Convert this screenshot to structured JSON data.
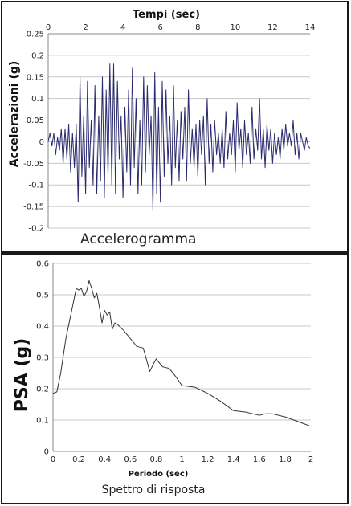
{
  "chart_data": [
    {
      "type": "line",
      "title": "",
      "caption": "Accelerogramma",
      "xlabel": "Tempi (sec)",
      "ylabel": "Accelerazioni (g)",
      "xlim": [
        0,
        14
      ],
      "ylim": [
        -0.2,
        0.25
      ],
      "x_axis_position": "top",
      "grid": "horizontal",
      "line_color": "#2b2a6e",
      "xticks": [
        "0",
        "2",
        "4",
        "6",
        "8",
        "10",
        "12",
        "14"
      ],
      "yticks": [
        "0.25",
        "0.2",
        "0.15",
        "0.1",
        "0.05",
        "0",
        "-0.05",
        "-0.1",
        "-0.15",
        "-0.2"
      ],
      "series": [
        {
          "x": [
            0,
            0.1,
            0.2,
            0.3,
            0.4,
            0.5,
            0.6,
            0.7,
            0.8,
            0.9,
            1.0,
            1.1,
            1.2,
            1.3,
            1.4,
            1.5,
            1.6,
            1.7,
            1.8,
            1.9,
            2.0,
            2.1,
            2.2,
            2.3,
            2.4,
            2.5,
            2.6,
            2.7,
            2.8,
            2.9,
            3.0,
            3.1,
            3.2,
            3.3,
            3.4,
            3.5,
            3.6,
            3.7,
            3.8,
            3.9,
            4.0,
            4.1,
            4.2,
            4.3,
            4.4,
            4.5,
            4.6,
            4.7,
            4.8,
            4.9,
            5.0,
            5.1,
            5.2,
            5.3,
            5.4,
            5.5,
            5.6,
            5.7,
            5.8,
            5.9,
            6.0,
            6.1,
            6.2,
            6.3,
            6.4,
            6.5,
            6.6,
            6.7,
            6.8,
            6.9,
            7.0,
            7.1,
            7.2,
            7.3,
            7.4,
            7.5,
            7.6,
            7.7,
            7.8,
            7.9,
            8.0,
            8.1,
            8.2,
            8.3,
            8.4,
            8.5,
            8.6,
            8.7,
            8.8,
            8.9,
            9.0,
            9.1,
            9.2,
            9.3,
            9.4,
            9.5,
            9.6,
            9.7,
            9.8,
            9.9,
            10.0,
            10.1,
            10.2,
            10.3,
            10.4,
            10.5,
            10.6,
            10.7,
            10.8,
            10.9,
            11.0,
            11.1,
            11.2,
            11.3,
            11.4,
            11.5,
            11.6,
            11.7,
            11.8,
            11.9,
            12.0,
            12.1,
            12.2,
            12.3,
            12.4,
            12.5,
            12.6,
            12.7,
            12.8,
            12.9,
            13.0,
            13.1,
            13.2,
            13.3,
            13.4,
            13.5,
            13.6,
            13.7,
            13.8,
            13.9,
            14.0
          ],
          "y": [
            0,
            0.02,
            -0.01,
            0.02,
            -0.03,
            0.01,
            -0.02,
            0.03,
            -0.05,
            0.03,
            -0.04,
            0.04,
            -0.07,
            0.02,
            -0.06,
            0.04,
            -0.14,
            0.15,
            -0.08,
            0.06,
            -0.12,
            0.14,
            -0.06,
            0.05,
            -0.1,
            0.13,
            -0.12,
            0.06,
            -0.09,
            0.15,
            -0.13,
            0.12,
            -0.08,
            0.18,
            -0.1,
            0.18,
            -0.12,
            0.14,
            -0.04,
            0.06,
            -0.13,
            0.08,
            -0.07,
            0.12,
            -0.1,
            0.17,
            -0.06,
            0.1,
            -0.12,
            0.05,
            -0.1,
            0.15,
            -0.07,
            0.13,
            -0.03,
            0.06,
            -0.16,
            0.16,
            -0.12,
            0.08,
            -0.14,
            0.14,
            -0.08,
            0.12,
            -0.05,
            0.06,
            -0.1,
            0.13,
            -0.06,
            0.05,
            -0.09,
            0.07,
            -0.04,
            0.08,
            -0.09,
            0.12,
            -0.05,
            0.03,
            -0.06,
            0.04,
            -0.08,
            0.05,
            -0.03,
            0.06,
            -0.1,
            0.1,
            -0.05,
            0.04,
            -0.07,
            0.05,
            -0.03,
            0.02,
            -0.05,
            0.03,
            -0.06,
            0.07,
            -0.04,
            0.02,
            -0.03,
            0.05,
            -0.07,
            0.09,
            -0.02,
            0.03,
            -0.06,
            0.05,
            -0.03,
            0.02,
            -0.05,
            0.08,
            -0.04,
            0.03,
            -0.02,
            0.1,
            -0.04,
            0.03,
            -0.06,
            0.04,
            -0.02,
            0.03,
            -0.05,
            0.02,
            -0.03,
            0.01,
            -0.04,
            0.03,
            -0.02,
            0.04,
            -0.01,
            0.02,
            -0.01,
            0.05,
            -0.03,
            0.02,
            -0.04,
            0.02,
            0.0,
            -0.02,
            0.01,
            -0.01,
            -0.015
          ]
        }
      ]
    },
    {
      "type": "line",
      "title": "",
      "caption": "Spettro di risposta",
      "xlabel": "Periodo (sec)",
      "ylabel": "PSA (g)",
      "xlim": [
        0,
        2
      ],
      "ylim": [
        0,
        0.6
      ],
      "x_axis_position": "bottom",
      "grid": "horizontal",
      "line_color": "#333333",
      "xticks": [
        "0",
        "0.2",
        "0.4",
        "0.6",
        "0.8",
        "1",
        "1.2",
        "1.4",
        "1.6",
        "1.8",
        "2"
      ],
      "yticks": [
        "0.6",
        "0.5",
        "0.4",
        "0.3",
        "0.2",
        "0.1",
        "0"
      ],
      "series": [
        {
          "x": [
            0,
            0.03,
            0.06,
            0.1,
            0.15,
            0.18,
            0.2,
            0.22,
            0.24,
            0.26,
            0.28,
            0.3,
            0.32,
            0.34,
            0.36,
            0.38,
            0.4,
            0.42,
            0.44,
            0.46,
            0.48,
            0.5,
            0.55,
            0.6,
            0.65,
            0.7,
            0.72,
            0.75,
            0.78,
            0.8,
            0.85,
            0.9,
            0.95,
            1.0,
            1.1,
            1.2,
            1.3,
            1.4,
            1.5,
            1.6,
            1.65,
            1.7,
            1.8,
            1.9,
            2.0
          ],
          "y": [
            0.185,
            0.19,
            0.25,
            0.36,
            0.46,
            0.52,
            0.515,
            0.52,
            0.495,
            0.51,
            0.545,
            0.52,
            0.49,
            0.505,
            0.46,
            0.41,
            0.45,
            0.435,
            0.445,
            0.39,
            0.41,
            0.405,
            0.385,
            0.36,
            0.335,
            0.33,
            0.3,
            0.255,
            0.28,
            0.295,
            0.27,
            0.265,
            0.24,
            0.21,
            0.205,
            0.185,
            0.16,
            0.13,
            0.125,
            0.115,
            0.12,
            0.12,
            0.11,
            0.095,
            0.08
          ]
        }
      ]
    }
  ]
}
